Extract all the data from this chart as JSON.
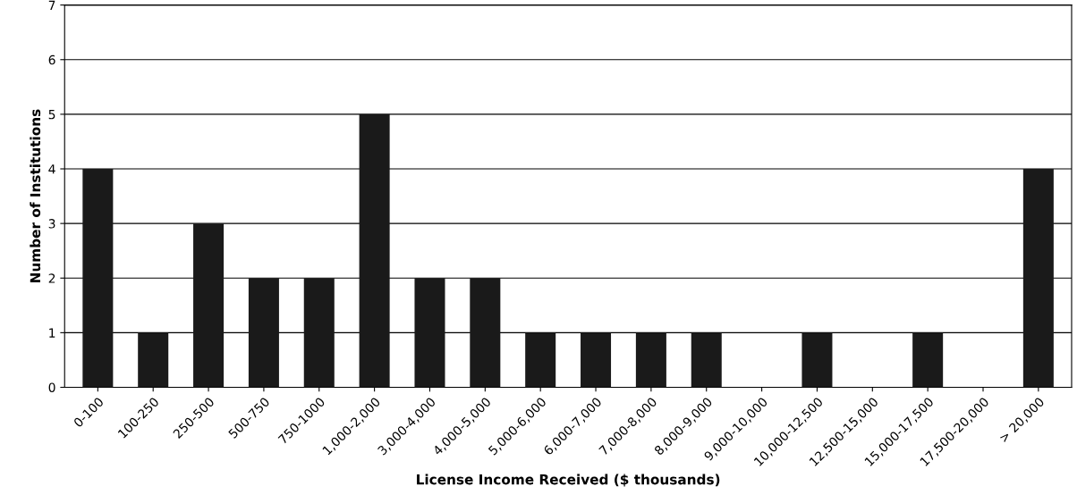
{
  "chart_data": {
    "type": "bar",
    "xlabel": "License Income Received ($ thousands)",
    "ylabel": "Number of Institutions",
    "categories": [
      "0-100",
      "100-250",
      "250-500",
      "500-750",
      "750-1000",
      "1,000-2,000",
      "3,000-4,000",
      "4,000-5,000",
      "5,000-6,000",
      "6,000-7,000",
      "7,000-8,000",
      "8,000-9,000",
      "9,000-10,000",
      "10,000-12,500",
      "12,500-15,000",
      "15,000-17,500",
      "17,500-20,000",
      "> 20,000"
    ],
    "values": [
      4,
      1,
      3,
      2,
      2,
      5,
      2,
      2,
      1,
      1,
      1,
      1,
      0,
      1,
      0,
      1,
      0,
      4
    ],
    "color": "#1a1a1a",
    "ylim": [
      0,
      7
    ],
    "yticks": [
      0,
      1,
      2,
      3,
      4,
      5,
      6,
      7
    ],
    "grid": "y",
    "legend": false
  }
}
